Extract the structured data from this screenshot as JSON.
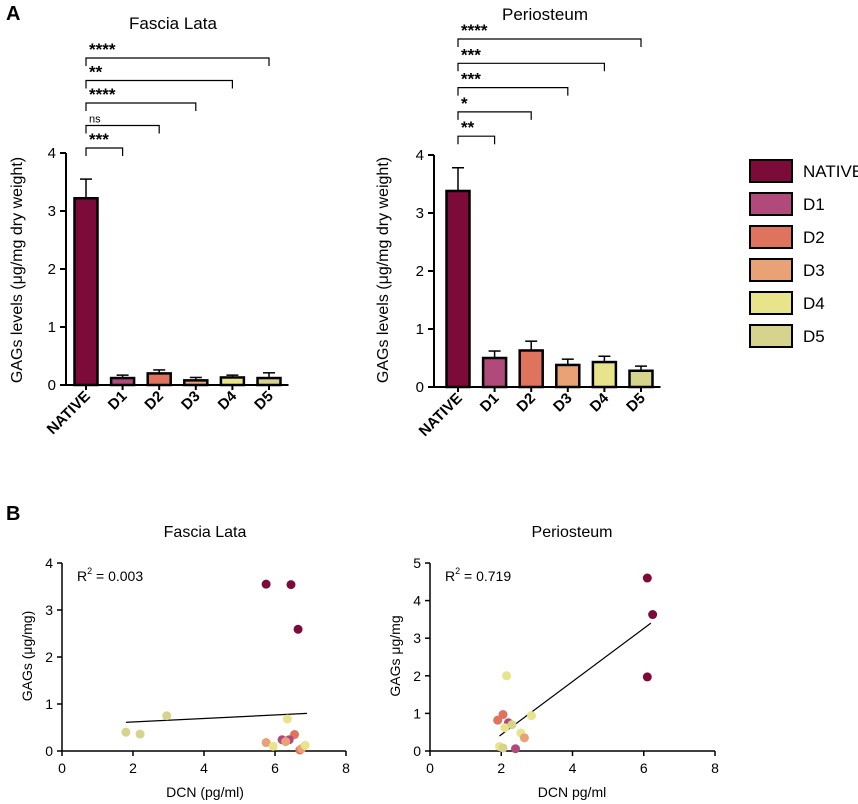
{
  "panel_labels": {
    "a": "A",
    "b": "B"
  },
  "legend": {
    "items": [
      {
        "label": "NATIVE",
        "color": "#7c0b3a"
      },
      {
        "label": "D1",
        "color": "#b04a7a"
      },
      {
        "label": "D2",
        "color": "#e0735e"
      },
      {
        "label": "D3",
        "color": "#e8a275"
      },
      {
        "label": "D4",
        "color": "#e8e48c"
      },
      {
        "label": "D5",
        "color": "#d6d48c"
      }
    ]
  },
  "chart_data": [
    {
      "type": "bar",
      "title": "Fascia Lata",
      "ylabel": "GAGs levels (μg/mg dry weight)",
      "xlabel": "",
      "categories": [
        "NATIVE",
        "D1",
        "D2",
        "D3",
        "D4",
        "D5"
      ],
      "values": [
        3.22,
        0.12,
        0.2,
        0.08,
        0.13,
        0.12
      ],
      "errors": [
        0.33,
        0.05,
        0.06,
        0.05,
        0.04,
        0.09
      ],
      "ylim": [
        0,
        4
      ],
      "yticks": [
        "0",
        "1",
        "2",
        "3",
        "4"
      ],
      "significance": [
        {
          "compare": [
            "NATIVE",
            "D1"
          ],
          "label": "***"
        },
        {
          "compare": [
            "NATIVE",
            "D2"
          ],
          "label": "ns"
        },
        {
          "compare": [
            "NATIVE",
            "D3"
          ],
          "label": "****"
        },
        {
          "compare": [
            "NATIVE",
            "D4"
          ],
          "label": "**"
        },
        {
          "compare": [
            "NATIVE",
            "D5"
          ],
          "label": "****"
        }
      ]
    },
    {
      "type": "bar",
      "title": "Periosteum",
      "ylabel": "GAGs levels (μg/mg dry weight)",
      "xlabel": "",
      "categories": [
        "NATIVE",
        "D1",
        "D2",
        "D3",
        "D4",
        "D5"
      ],
      "values": [
        3.38,
        0.5,
        0.63,
        0.38,
        0.43,
        0.28
      ],
      "errors": [
        0.4,
        0.12,
        0.16,
        0.1,
        0.1,
        0.08
      ],
      "ylim": [
        0,
        4
      ],
      "yticks": [
        "0",
        "1",
        "2",
        "3",
        "4"
      ],
      "significance": [
        {
          "compare": [
            "NATIVE",
            "D1"
          ],
          "label": "**"
        },
        {
          "compare": [
            "NATIVE",
            "D2"
          ],
          "label": "*"
        },
        {
          "compare": [
            "NATIVE",
            "D3"
          ],
          "label": "***"
        },
        {
          "compare": [
            "NATIVE",
            "D4"
          ],
          "label": "***"
        },
        {
          "compare": [
            "NATIVE",
            "D5"
          ],
          "label": "****"
        }
      ]
    },
    {
      "type": "scatter",
      "title": "Fascia Lata",
      "xlabel": "DCN (pg/ml)",
      "ylabel": "GAGs (μg/mg)",
      "xlim": [
        0,
        8
      ],
      "ylim": [
        0,
        4
      ],
      "xticks": [
        "0",
        "2",
        "4",
        "6",
        "8"
      ],
      "yticks": [
        "0",
        "1",
        "2",
        "3",
        "4"
      ],
      "r2_prefix": "R",
      "r2_sup": "2",
      "r2_value": " = 0.003",
      "fit_line": {
        "x": [
          1.8,
          6.9
        ],
        "y": [
          0.61,
          0.8
        ]
      },
      "points": [
        {
          "x": 5.75,
          "y": 3.55,
          "group": "NATIVE"
        },
        {
          "x": 6.45,
          "y": 3.54,
          "group": "NATIVE"
        },
        {
          "x": 6.65,
          "y": 2.59,
          "group": "NATIVE"
        },
        {
          "x": 2.95,
          "y": 0.75,
          "group": "D5"
        },
        {
          "x": 1.8,
          "y": 0.4,
          "group": "D5"
        },
        {
          "x": 2.2,
          "y": 0.36,
          "group": "D5"
        },
        {
          "x": 6.35,
          "y": 0.68,
          "group": "D4"
        },
        {
          "x": 6.55,
          "y": 0.35,
          "group": "D2"
        },
        {
          "x": 5.75,
          "y": 0.18,
          "group": "D3"
        },
        {
          "x": 5.95,
          "y": 0.1,
          "group": "D4"
        },
        {
          "x": 6.2,
          "y": 0.24,
          "group": "D1"
        },
        {
          "x": 6.4,
          "y": 0.24,
          "group": "D1"
        },
        {
          "x": 6.3,
          "y": 0.2,
          "group": "D3"
        },
        {
          "x": 6.7,
          "y": 0.02,
          "group": "D2"
        },
        {
          "x": 6.75,
          "y": 0.05,
          "group": "D3"
        },
        {
          "x": 6.85,
          "y": 0.12,
          "group": "D4"
        }
      ]
    },
    {
      "type": "scatter",
      "title": "Periosteum",
      "xlabel": "DCN pg/ml",
      "ylabel": "GAGs μg/mg",
      "xlim": [
        0,
        8
      ],
      "ylim": [
        0,
        5
      ],
      "xticks": [
        "0",
        "2",
        "4",
        "6",
        "8"
      ],
      "yticks": [
        "0",
        "1",
        "2",
        "3",
        "4",
        "5"
      ],
      "r2_prefix": "R",
      "r2_sup": "2",
      "r2_value": " = 0.719",
      "fit_line": {
        "x": [
          1.95,
          6.2
        ],
        "y": [
          0.4,
          3.4
        ]
      },
      "points": [
        {
          "x": 6.1,
          "y": 4.6,
          "group": "NATIVE"
        },
        {
          "x": 6.25,
          "y": 3.63,
          "group": "NATIVE"
        },
        {
          "x": 6.1,
          "y": 1.97,
          "group": "NATIVE"
        },
        {
          "x": 2.15,
          "y": 2.0,
          "group": "D4"
        },
        {
          "x": 2.05,
          "y": 0.97,
          "group": "D2"
        },
        {
          "x": 1.9,
          "y": 0.82,
          "group": "D2"
        },
        {
          "x": 2.2,
          "y": 0.75,
          "group": "D1"
        },
        {
          "x": 2.85,
          "y": 0.94,
          "group": "D4"
        },
        {
          "x": 2.1,
          "y": 0.62,
          "group": "D4"
        },
        {
          "x": 2.3,
          "y": 0.7,
          "group": "D5"
        },
        {
          "x": 2.55,
          "y": 0.48,
          "group": "D4"
        },
        {
          "x": 2.65,
          "y": 0.35,
          "group": "D3"
        },
        {
          "x": 1.95,
          "y": 0.12,
          "group": "D4"
        },
        {
          "x": 2.05,
          "y": 0.08,
          "group": "D5"
        },
        {
          "x": 2.4,
          "y": 0.06,
          "group": "D1"
        }
      ]
    }
  ]
}
